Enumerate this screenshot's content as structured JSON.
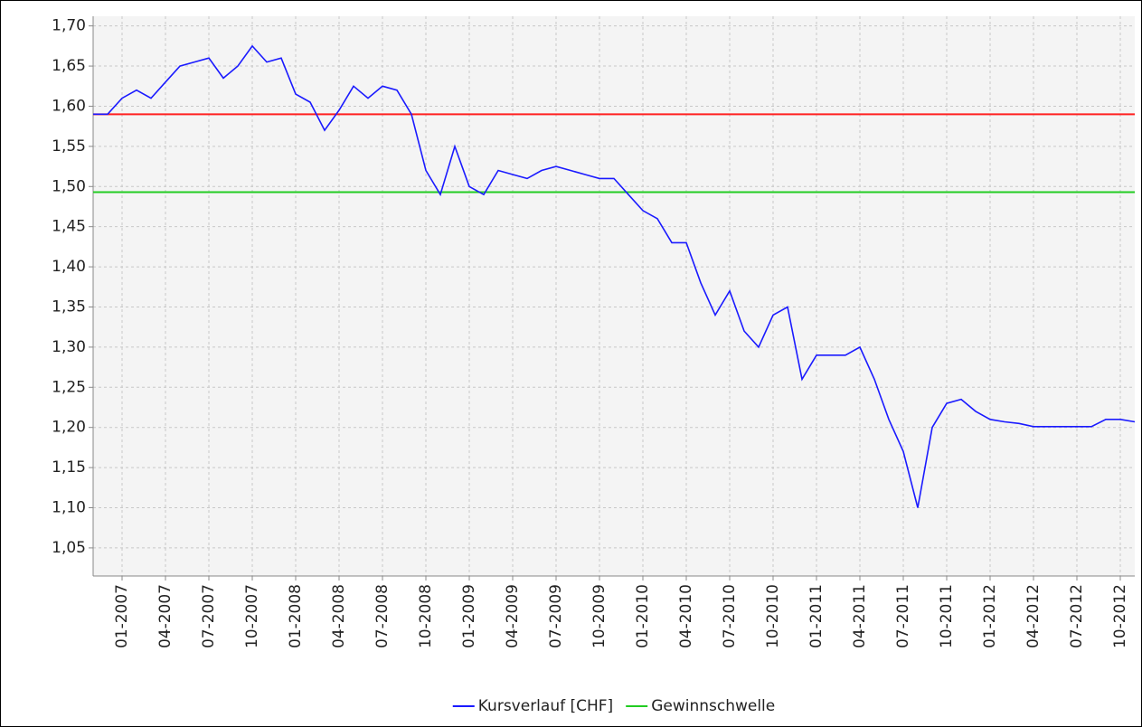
{
  "chart_data": {
    "type": "line",
    "series": [
      {
        "name": "Kursverlauf [CHF]",
        "color": "#1a1aff",
        "x": [
          "11-2006",
          "12-2006",
          "01-2007",
          "02-2007",
          "03-2007",
          "04-2007",
          "05-2007",
          "06-2007",
          "07-2007",
          "08-2007",
          "09-2007",
          "10-2007",
          "11-2007",
          "12-2007",
          "01-2008",
          "02-2008",
          "03-2008",
          "04-2008",
          "05-2008",
          "06-2008",
          "07-2008",
          "08-2008",
          "09-2008",
          "10-2008",
          "11-2008",
          "12-2008",
          "01-2009",
          "02-2009",
          "03-2009",
          "04-2009",
          "05-2009",
          "06-2009",
          "07-2009",
          "08-2009",
          "09-2009",
          "10-2009",
          "11-2009",
          "12-2009",
          "01-2010",
          "02-2010",
          "03-2010",
          "04-2010",
          "05-2010",
          "06-2010",
          "07-2010",
          "08-2010",
          "09-2010",
          "10-2010",
          "11-2010",
          "12-2010",
          "01-2011",
          "02-2011",
          "03-2011",
          "04-2011",
          "05-2011",
          "06-2011",
          "07-2011",
          "08-2011",
          "09-2011",
          "10-2011",
          "11-2011",
          "12-2011",
          "01-2012",
          "02-2012",
          "03-2012",
          "04-2012",
          "05-2012",
          "06-2012",
          "07-2012",
          "08-2012",
          "09-2012",
          "10-2012",
          "11-2012"
        ],
        "values": [
          1.59,
          1.59,
          1.61,
          1.62,
          1.61,
          1.63,
          1.65,
          1.655,
          1.66,
          1.635,
          1.65,
          1.675,
          1.655,
          1.66,
          1.615,
          1.605,
          1.57,
          1.595,
          1.625,
          1.61,
          1.625,
          1.62,
          1.59,
          1.52,
          1.49,
          1.55,
          1.5,
          1.49,
          1.52,
          1.515,
          1.51,
          1.52,
          1.525,
          1.52,
          1.515,
          1.51,
          1.51,
          1.49,
          1.47,
          1.46,
          1.43,
          1.43,
          1.38,
          1.34,
          1.37,
          1.32,
          1.3,
          1.34,
          1.35,
          1.26,
          1.29,
          1.29,
          1.29,
          1.3,
          1.26,
          1.21,
          1.17,
          1.1,
          1.2,
          1.23,
          1.235,
          1.22,
          1.21,
          1.207,
          1.205,
          1.201,
          1.201,
          1.201,
          1.201,
          1.201,
          1.21,
          1.21,
          1.207
        ]
      }
    ],
    "reference_lines": [
      {
        "value": 1.59,
        "color": "#ff2020"
      },
      {
        "name": "Gewinnschwelle",
        "value": 1.493,
        "color": "#22cc22"
      }
    ],
    "xlim": [
      "11-2006",
      "11-2012"
    ],
    "xticks": [
      "01-2007",
      "04-2007",
      "07-2007",
      "10-2007",
      "01-2008",
      "04-2008",
      "07-2008",
      "10-2008",
      "01-2009",
      "04-2009",
      "07-2009",
      "10-2009",
      "01-2010",
      "04-2010",
      "07-2010",
      "10-2010",
      "01-2011",
      "04-2011",
      "07-2011",
      "10-2011",
      "01-2012",
      "04-2012",
      "07-2012",
      "10-2012"
    ],
    "ylim": [
      1.015,
      1.712
    ],
    "yticks": [
      {
        "value": 1.05,
        "label": "1,05"
      },
      {
        "value": 1.1,
        "label": "1,10"
      },
      {
        "value": 1.15,
        "label": "1,15"
      },
      {
        "value": 1.2,
        "label": "1,20"
      },
      {
        "value": 1.25,
        "label": "1,25"
      },
      {
        "value": 1.3,
        "label": "1,30"
      },
      {
        "value": 1.35,
        "label": "1,35"
      },
      {
        "value": 1.4,
        "label": "1,40"
      },
      {
        "value": 1.45,
        "label": "1,45"
      },
      {
        "value": 1.5,
        "label": "1,50"
      },
      {
        "value": 1.55,
        "label": "1,55"
      },
      {
        "value": 1.6,
        "label": "1,60"
      },
      {
        "value": 1.65,
        "label": "1,65"
      },
      {
        "value": 1.7,
        "label": "1,70"
      }
    ],
    "grid": true,
    "legend": "bottom"
  }
}
